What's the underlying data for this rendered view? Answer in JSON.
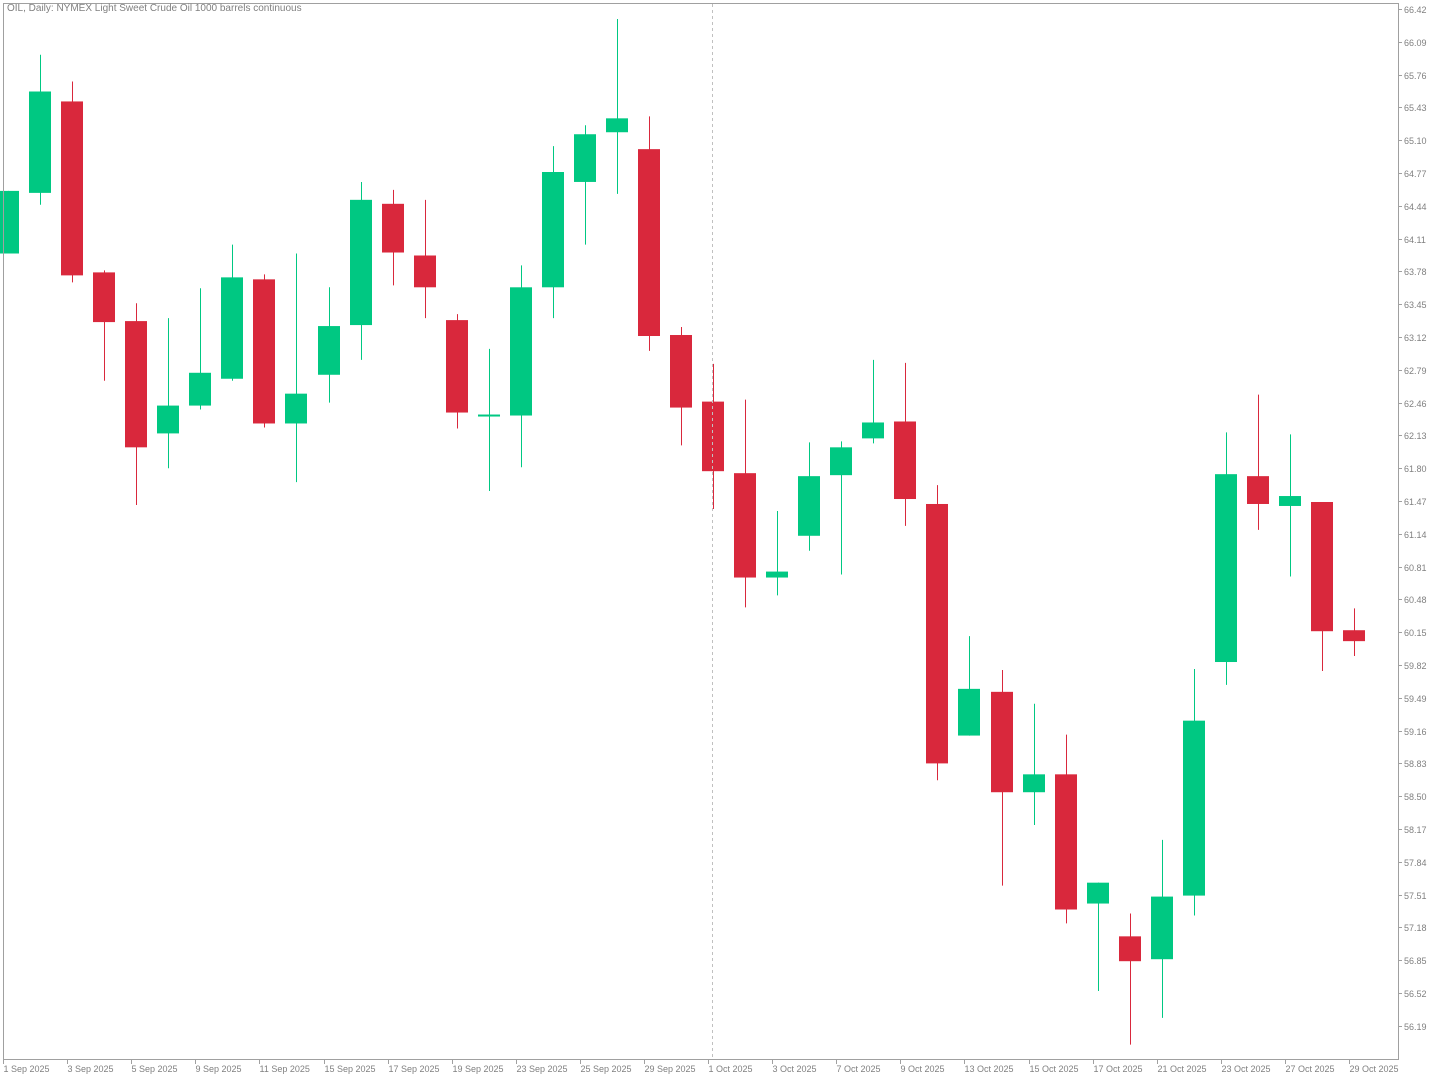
{
  "header": {
    "title": "OIL, Daily:  NYMEX Light Sweet Crude Oil 1000 barrels continuous"
  },
  "colors": {
    "background": "#ffffff",
    "axis": "#a0a0a0",
    "label": "#808080",
    "bull": "#00c882",
    "bear": "#d9283c",
    "crosshair": "#c0c0c0"
  },
  "chart_data": {
    "type": "candlestick",
    "title": "OIL, Daily:  NYMEX Light Sweet Crude Oil 1000 barrels continuous",
    "grid": false,
    "ylim": [
      55.97,
      66.42
    ],
    "y_ticks": [
      "66.42",
      "66.09",
      "65.76",
      "65.43",
      "65.10",
      "64.77",
      "64.44",
      "64.11",
      "63.78",
      "63.45",
      "63.12",
      "62.79",
      "62.46",
      "62.13",
      "61.80",
      "61.47",
      "61.14",
      "60.81",
      "60.48",
      "60.15",
      "59.82",
      "59.49",
      "59.16",
      "58.83",
      "58.50",
      "58.17",
      "57.84",
      "57.51",
      "57.18",
      "56.85",
      "56.52",
      "56.19"
    ],
    "x_tick_labels": [
      {
        "index": 0,
        "label": "1 Sep 2025"
      },
      {
        "index": 2,
        "label": "3 Sep 2025"
      },
      {
        "index": 4,
        "label": "5 Sep 2025"
      },
      {
        "index": 6,
        "label": "9 Sep 2025"
      },
      {
        "index": 8,
        "label": "11 Sep 2025"
      },
      {
        "index": 10,
        "label": "15 Sep 2025"
      },
      {
        "index": 12,
        "label": "17 Sep 2025"
      },
      {
        "index": 14,
        "label": "19 Sep 2025"
      },
      {
        "index": 16,
        "label": "23 Sep 2025"
      },
      {
        "index": 18,
        "label": "25 Sep 2025"
      },
      {
        "index": 20,
        "label": "29 Sep 2025"
      },
      {
        "index": 22,
        "label": "1 Oct 2025"
      },
      {
        "index": 24,
        "label": "3 Oct 2025"
      },
      {
        "index": 26,
        "label": "7 Oct 2025"
      },
      {
        "index": 28,
        "label": "9 Oct 2025"
      },
      {
        "index": 30,
        "label": "13 Oct 2025"
      },
      {
        "index": 32,
        "label": "15 Oct 2025"
      },
      {
        "index": 34,
        "label": "17 Oct 2025"
      },
      {
        "index": 36,
        "label": "21 Oct 2025"
      },
      {
        "index": 38,
        "label": "23 Oct 2025"
      },
      {
        "index": 40,
        "label": "27 Oct 2025"
      },
      {
        "index": 42,
        "label": "29 Oct 2025"
      }
    ],
    "period_separator_index": 22,
    "candles": [
      {
        "date": "2025-09-01",
        "open": 63.96,
        "high": 64.59,
        "low": 63.96,
        "close": 64.59
      },
      {
        "date": "2025-09-02",
        "open": 64.57,
        "high": 65.96,
        "low": 64.45,
        "close": 65.59
      },
      {
        "date": "2025-09-03",
        "open": 65.49,
        "high": 65.69,
        "low": 63.67,
        "close": 63.74
      },
      {
        "date": "2025-09-04",
        "open": 63.77,
        "high": 63.79,
        "low": 62.68,
        "close": 63.27
      },
      {
        "date": "2025-09-05",
        "open": 63.28,
        "high": 63.46,
        "low": 61.43,
        "close": 62.01
      },
      {
        "date": "2025-09-08",
        "open": 62.15,
        "high": 63.31,
        "low": 61.8,
        "close": 62.43
      },
      {
        "date": "2025-09-09",
        "open": 62.43,
        "high": 63.61,
        "low": 62.39,
        "close": 62.76
      },
      {
        "date": "2025-09-10",
        "open": 62.7,
        "high": 64.05,
        "low": 62.68,
        "close": 63.72
      },
      {
        "date": "2025-09-11",
        "open": 63.7,
        "high": 63.75,
        "low": 62.21,
        "close": 62.25
      },
      {
        "date": "2025-09-12",
        "open": 62.25,
        "high": 63.96,
        "low": 61.66,
        "close": 62.55
      },
      {
        "date": "2025-09-15",
        "open": 62.74,
        "high": 63.62,
        "low": 62.46,
        "close": 63.23
      },
      {
        "date": "2025-09-16",
        "open": 63.24,
        "high": 64.68,
        "low": 62.89,
        "close": 64.5
      },
      {
        "date": "2025-09-17",
        "open": 64.46,
        "high": 64.6,
        "low": 63.64,
        "close": 63.97
      },
      {
        "date": "2025-09-18",
        "open": 63.94,
        "high": 64.5,
        "low": 63.31,
        "close": 63.62
      },
      {
        "date": "2025-09-19",
        "open": 63.29,
        "high": 63.35,
        "low": 62.2,
        "close": 62.36
      },
      {
        "date": "2025-09-22",
        "open": 62.32,
        "high": 63.0,
        "low": 61.57,
        "close": 62.34
      },
      {
        "date": "2025-09-23",
        "open": 62.33,
        "high": 63.84,
        "low": 61.81,
        "close": 63.62
      },
      {
        "date": "2025-09-24",
        "open": 63.62,
        "high": 65.04,
        "low": 63.31,
        "close": 64.78
      },
      {
        "date": "2025-09-25",
        "open": 64.68,
        "high": 65.25,
        "low": 64.05,
        "close": 65.16
      },
      {
        "date": "2025-09-26",
        "open": 65.18,
        "high": 66.32,
        "low": 64.56,
        "close": 65.32
      },
      {
        "date": "2025-09-29",
        "open": 65.01,
        "high": 65.34,
        "low": 62.98,
        "close": 63.13
      },
      {
        "date": "2025-09-30",
        "open": 63.14,
        "high": 63.22,
        "low": 62.03,
        "close": 62.41
      },
      {
        "date": "2025-10-01",
        "open": 62.47,
        "high": 62.85,
        "low": 61.39,
        "close": 61.77
      },
      {
        "date": "2025-10-02",
        "open": 61.75,
        "high": 62.49,
        "low": 60.4,
        "close": 60.7
      },
      {
        "date": "2025-10-03",
        "open": 60.7,
        "high": 61.37,
        "low": 60.52,
        "close": 60.76
      },
      {
        "date": "2025-10-06",
        "open": 61.12,
        "high": 62.06,
        "low": 60.97,
        "close": 61.72
      },
      {
        "date": "2025-10-07",
        "open": 61.73,
        "high": 62.07,
        "low": 60.73,
        "close": 62.01
      },
      {
        "date": "2025-10-08",
        "open": 62.1,
        "high": 62.89,
        "low": 62.05,
        "close": 62.26
      },
      {
        "date": "2025-10-09",
        "open": 62.27,
        "high": 62.86,
        "low": 61.22,
        "close": 61.49
      },
      {
        "date": "2025-10-10",
        "open": 61.44,
        "high": 61.63,
        "low": 58.66,
        "close": 58.83
      },
      {
        "date": "2025-10-13",
        "open": 59.11,
        "high": 60.11,
        "low": 59.11,
        "close": 59.58
      },
      {
        "date": "2025-10-14",
        "open": 59.55,
        "high": 59.77,
        "low": 57.6,
        "close": 58.54
      },
      {
        "date": "2025-10-15",
        "open": 58.54,
        "high": 59.43,
        "low": 58.21,
        "close": 58.72
      },
      {
        "date": "2025-10-16",
        "open": 58.72,
        "high": 59.12,
        "low": 57.22,
        "close": 57.36
      },
      {
        "date": "2025-10-17",
        "open": 57.42,
        "high": 57.63,
        "low": 56.54,
        "close": 57.63
      },
      {
        "date": "2025-10-20",
        "open": 57.09,
        "high": 57.32,
        "low": 56.0,
        "close": 56.84
      },
      {
        "date": "2025-10-21",
        "open": 56.86,
        "high": 58.06,
        "low": 56.27,
        "close": 57.49
      },
      {
        "date": "2025-10-22",
        "open": 57.5,
        "high": 59.78,
        "low": 57.3,
        "close": 59.26
      },
      {
        "date": "2025-10-23",
        "open": 59.85,
        "high": 62.16,
        "low": 59.62,
        "close": 61.74
      },
      {
        "date": "2025-10-24",
        "open": 61.72,
        "high": 62.54,
        "low": 61.18,
        "close": 61.44
      },
      {
        "date": "2025-10-27",
        "open": 61.42,
        "high": 62.14,
        "low": 60.71,
        "close": 61.52
      },
      {
        "date": "2025-10-28",
        "open": 61.46,
        "high": 61.46,
        "low": 59.76,
        "close": 60.16
      },
      {
        "date": "2025-10-29",
        "open": 60.17,
        "high": 60.39,
        "low": 59.91,
        "close": 60.06
      }
    ]
  }
}
